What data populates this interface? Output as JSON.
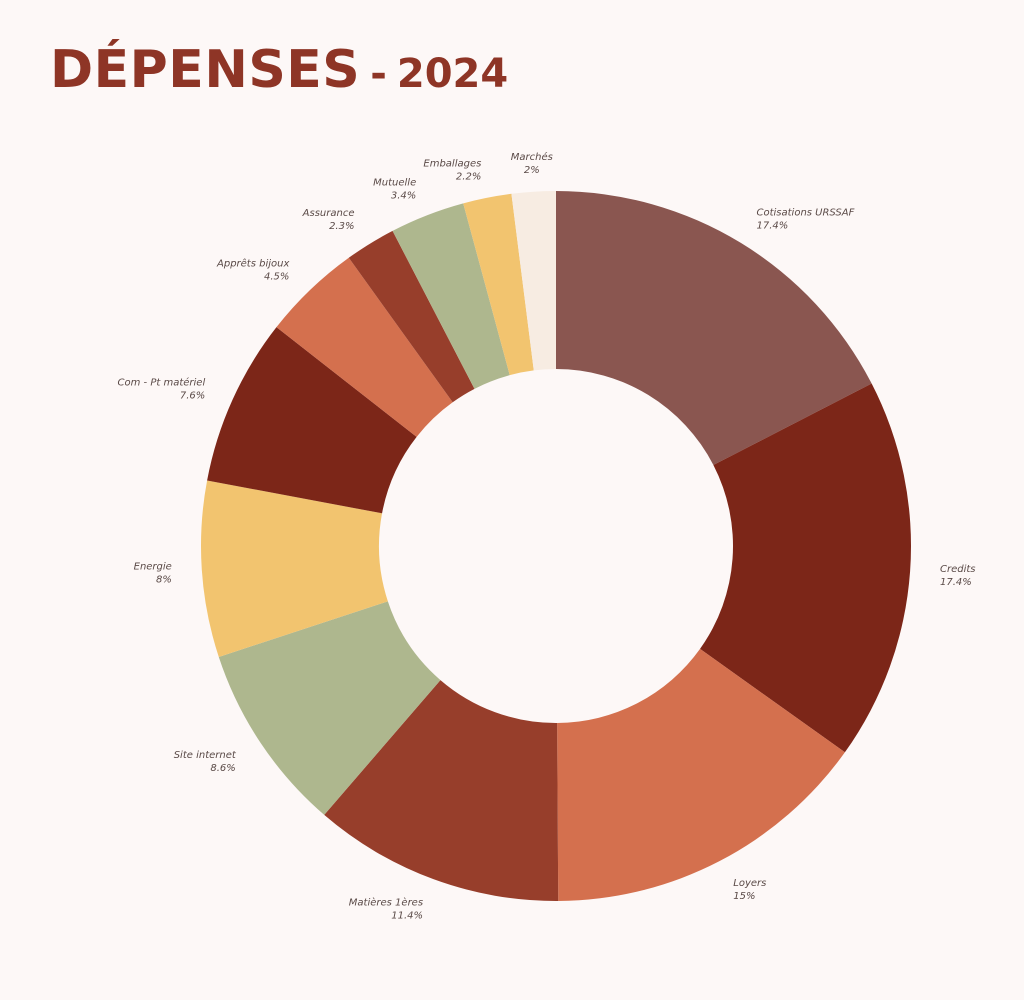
{
  "title": {
    "main": "DÉPENSES",
    "separator": "-",
    "year": "2024"
  },
  "colors": {
    "title": "#8e3526",
    "background": "#fdf8f7"
  },
  "chart_data": {
    "type": "pie",
    "style": "donut",
    "title": "DÉPENSES - 2024",
    "slices": [
      {
        "label": "Cotisations URSSAF",
        "value": 17.4,
        "display": "17.4%",
        "color": "#8a5650"
      },
      {
        "label": "Credits",
        "value": 17.4,
        "display": "17.4%",
        "color": "#7c2618"
      },
      {
        "label": "Loyers",
        "value": 15,
        "display": "15%",
        "color": "#d4704e"
      },
      {
        "label": "Matières 1ères",
        "value": 11.4,
        "display": "11.4%",
        "color": "#973e2b"
      },
      {
        "label": "Site internet",
        "value": 8.6,
        "display": "8.6%",
        "color": "#aeb78e"
      },
      {
        "label": "Energie",
        "value": 8,
        "display": "8%",
        "color": "#f2c46f"
      },
      {
        "label": "Com - Pt matériel",
        "value": 7.6,
        "display": "7.6%",
        "color": "#7c2618"
      },
      {
        "label": "Apprêts bijoux",
        "value": 4.5,
        "display": "4.5%",
        "color": "#d4704e"
      },
      {
        "label": "Assurance",
        "value": 2.3,
        "display": "2.3%",
        "color": "#973e2b"
      },
      {
        "label": "Mutuelle",
        "value": 3.4,
        "display": "3.4%",
        "color": "#aeb78e"
      },
      {
        "label": "Emballages",
        "value": 2.2,
        "display": "2.2%",
        "color": "#f2c46f"
      },
      {
        "label": "Marchés",
        "value": 2,
        "display": "2%",
        "color": "#f7ece2"
      }
    ]
  }
}
